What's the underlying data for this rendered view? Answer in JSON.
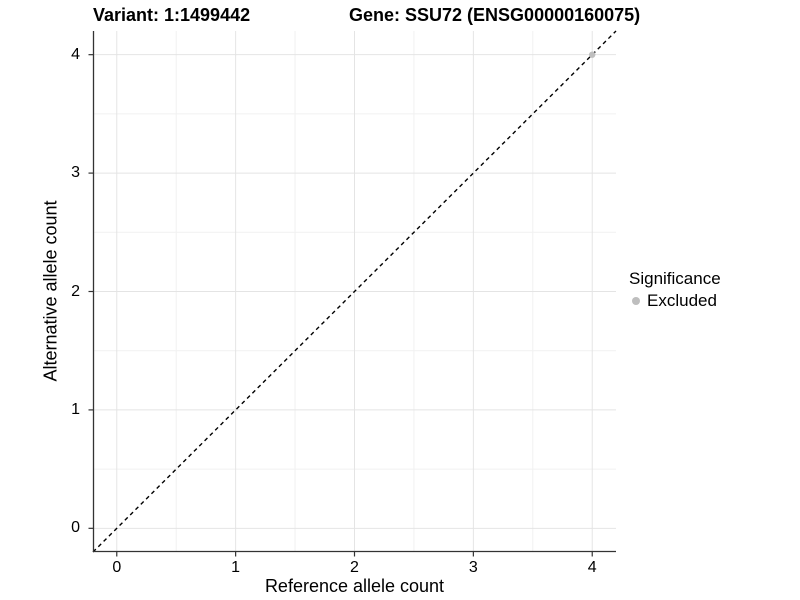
{
  "titles": {
    "variant": "Variant: 1:1499442",
    "gene": "Gene: SSU72 (ENSG00000160075)"
  },
  "chart_data": {
    "type": "scatter",
    "xlabel": "Reference allele count",
    "ylabel": "Alternative allele count",
    "xlim": [
      -0.2,
      4.2
    ],
    "ylim": [
      -0.2,
      4.2
    ],
    "x_ticks": [
      0,
      1,
      2,
      3,
      4
    ],
    "y_ticks": [
      0,
      1,
      2,
      3,
      4
    ],
    "x_minor_ticks": [
      0.5,
      1.5,
      2.5,
      3.5
    ],
    "y_minor_ticks": [
      0.5,
      1.5,
      2.5,
      3.5
    ],
    "grid": "major+minor",
    "series": [
      {
        "name": "Excluded",
        "marker": "circle",
        "color": "#bebebe",
        "points": [
          [
            4,
            4
          ]
        ]
      }
    ],
    "reference_line": {
      "kind": "identity y=x",
      "style": "dashed",
      "color": "#000000"
    },
    "legend": {
      "title": "Significance",
      "position": "right",
      "items": [
        {
          "label": "Excluded",
          "color": "#bebebe"
        }
      ]
    }
  },
  "style": {
    "background": "#ffffff",
    "axis_line_color": "#333333",
    "tick_color": "#333333",
    "grid_major_color": "#e4e4e4",
    "grid_minor_color": "#f1f1f1",
    "text_color": "#000000"
  }
}
